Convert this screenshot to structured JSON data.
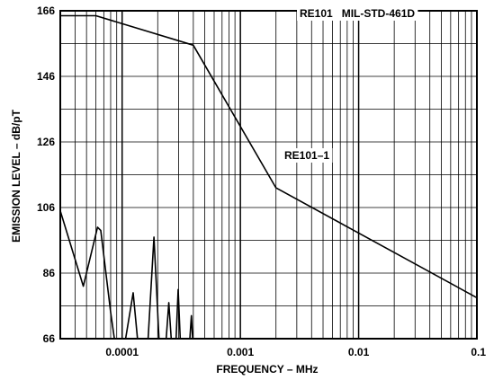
{
  "chart_data": {
    "type": "line",
    "title": "",
    "xlabel": "FREQUENCY – MHz",
    "ylabel": "EMISSION LEVEL – dB/pT",
    "x_scale": "log",
    "xlim": [
      3e-05,
      0.1
    ],
    "ylim": [
      66,
      166
    ],
    "grid": true,
    "x_tick_labels": [
      {
        "value": 0.0001,
        "label": "0.0001"
      },
      {
        "value": 0.001,
        "label": "0.001"
      },
      {
        "value": 0.01,
        "label": "0.01"
      },
      {
        "value": 0.1,
        "label": "0.1"
      }
    ],
    "y_ticks": [
      66,
      86,
      106,
      126,
      146,
      166
    ],
    "annotations": [
      {
        "id": "title_note",
        "text": "RE101   MIL-STD-461D"
      },
      {
        "id": "limit_note",
        "text": "RE101–1"
      }
    ],
    "series": [
      {
        "name": "RE101–1",
        "points": [
          [
            3e-05,
            164.5
          ],
          [
            6e-05,
            164.5
          ],
          [
            0.0004,
            155.5
          ],
          [
            0.002,
            112.0
          ],
          [
            0.1,
            78.5
          ]
        ]
      },
      {
        "name": "",
        "points": [
          [
            3e-05,
            105
          ],
          [
            4.7e-05,
            82
          ],
          [
            6.2e-05,
            100
          ],
          [
            6.6e-05,
            99
          ],
          [
            8e-05,
            74
          ],
          [
            8.6e-05,
            66
          ],
          [
            0.000107,
            66
          ],
          [
            0.000124,
            80
          ],
          [
            0.000135,
            66
          ],
          [
            0.000166,
            66
          ],
          [
            0.000186,
            97
          ],
          [
            0.000205,
            66
          ],
          [
            0.000236,
            66
          ],
          [
            0.000248,
            77
          ],
          [
            0.00026,
            66
          ],
          [
            0.000286,
            66
          ],
          [
            0.000298,
            81
          ],
          [
            0.00031,
            66
          ],
          [
            0.000374,
            66
          ],
          [
            0.000385,
            73
          ],
          [
            0.000395,
            66
          ],
          [
            0.1,
            66
          ]
        ]
      }
    ]
  }
}
